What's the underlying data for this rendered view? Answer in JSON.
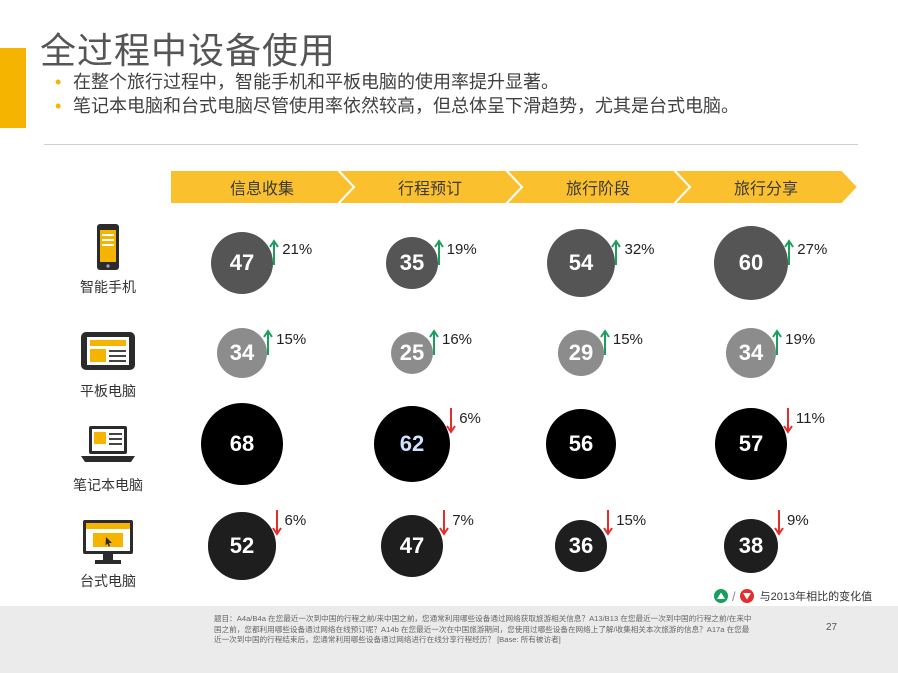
{
  "header": {
    "title": "全过程中设备使用",
    "bullets": [
      "在整个旅行过程中，智能手机和平板电脑的使用率提升显著。",
      "笔记本电脑和台式电脑尽管使用率依然较高，但总体呈下滑趋势，尤其是台式电脑。"
    ]
  },
  "stages": [
    "信息收集",
    "行程预订",
    "旅行阶段",
    "旅行分享"
  ],
  "rows": [
    {
      "device": "智能手机",
      "icon": "smartphone-icon",
      "color": "#555555",
      "cells": [
        {
          "value": "47",
          "trend": "up",
          "change": "21%"
        },
        {
          "value": "35",
          "trend": "up",
          "change": "19%"
        },
        {
          "value": "54",
          "trend": "up",
          "change": "32%"
        },
        {
          "value": "60",
          "trend": "up",
          "change": "27%"
        }
      ]
    },
    {
      "device": "平板电脑",
      "icon": "tablet-icon",
      "color": "#8c8c8c",
      "cells": [
        {
          "value": "34",
          "trend": "up",
          "change": "15%"
        },
        {
          "value": "25",
          "trend": "up",
          "change": "16%"
        },
        {
          "value": "29",
          "trend": "up",
          "change": "15%"
        },
        {
          "value": "34",
          "trend": "up",
          "change": "19%"
        }
      ]
    },
    {
      "device": "笔记本电脑",
      "icon": "laptop-icon",
      "color": "#000000",
      "cells": [
        {
          "value": "68",
          "trend": "",
          "change": ""
        },
        {
          "value": "62",
          "trend": "down",
          "change": "6%"
        },
        {
          "value": "56",
          "trend": "",
          "change": ""
        },
        {
          "value": "57",
          "trend": "down",
          "change": "11%"
        }
      ]
    },
    {
      "device": "台式电脑",
      "icon": "desktop-icon",
      "color": "#1e1e1e",
      "cells": [
        {
          "value": "52",
          "trend": "down",
          "change": "6%"
        },
        {
          "value": "47",
          "trend": "down",
          "change": "7%"
        },
        {
          "value": "36",
          "trend": "down",
          "change": "15%"
        },
        {
          "value": "38",
          "trend": "down",
          "change": "9%"
        }
      ]
    }
  ],
  "legend": {
    "text": "与2013年相比的变化值",
    "up_color": "#1a9e5c",
    "down_color": "#e52d2d"
  },
  "footnote": "题目：A4a/B4a 在您最近一次到中国的行程之前/来中国之前，您通常利用哪些设备通过网络获取旅游相关信息？A13/B13 在您最近一次到中国的行程之前/在来中国之前，您都利用哪些设备通过网络在线预订呢？A14b 在您最近一次在中国旅游期间，您使用过哪些设备在网络上了解/收集相关本次旅游的信息？A17a 在您最近一次到中国的行程结束后，您通常利用哪些设备通过网络进行在线分享行程经历？ [Base: 所有被访者]",
  "page_number": "27",
  "colors": {
    "accent": "#f5b400",
    "chevron": "#fbc02d",
    "up": "#1a9e5c",
    "down": "#e52d2d",
    "highlight_value": "#cfe3ff"
  }
}
